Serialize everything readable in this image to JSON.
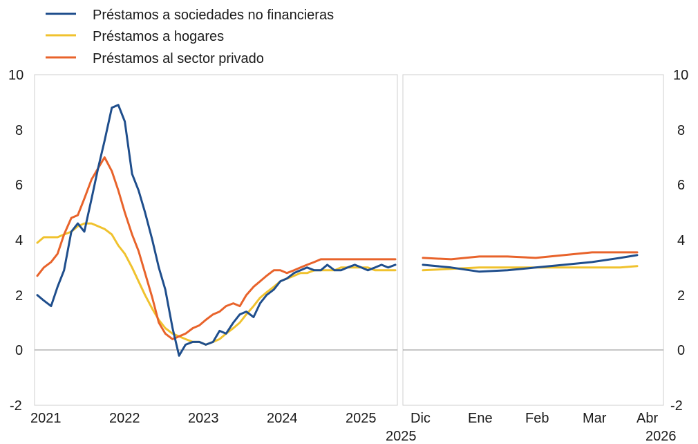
{
  "chart_data": {
    "type": "line",
    "legend": {
      "position": "top-left",
      "entries": [
        {
          "label": "Préstamos a sociedades no financieras",
          "color": "#1f4e8c"
        },
        {
          "label": "Préstamos a hogares",
          "color": "#f0c22e"
        },
        {
          "label": "Préstamos al sector privado",
          "color": "#e8632b"
        }
      ]
    },
    "y_axis": {
      "min": -2,
      "max": 10,
      "ticks": [
        "10",
        "8",
        "6",
        "4",
        "2",
        "0",
        "-2"
      ]
    },
    "grid": false,
    "panels": [
      {
        "id": "history",
        "x_ticks": [
          {
            "label": "2021",
            "x": 2021.0
          },
          {
            "label": "2022",
            "x": 2022.0
          },
          {
            "label": "2023",
            "x": 2023.0
          },
          {
            "label": "2024",
            "x": 2024.0
          },
          {
            "label": "2025",
            "x": 2025.0
          }
        ],
        "xlim": [
          2021.0,
          2025.42
        ],
        "series": [
          {
            "name": "Préstamos a sociedades no financieras",
            "color": "#1f4e8c",
            "x": [
              2021.0,
              2021.08,
              2021.17,
              2021.25,
              2021.33,
              2021.42,
              2021.5,
              2021.58,
              2021.67,
              2021.75,
              2021.83,
              2021.92,
              2022.0,
              2022.08,
              2022.17,
              2022.25,
              2022.33,
              2022.42,
              2022.5,
              2022.58,
              2022.67,
              2022.75,
              2022.83,
              2022.92,
              2023.0,
              2023.08,
              2023.17,
              2023.25,
              2023.33,
              2023.42,
              2023.5,
              2023.58,
              2023.67,
              2023.75,
              2023.83,
              2023.92,
              2024.0,
              2024.08,
              2024.17,
              2024.25,
              2024.33,
              2024.42,
              2024.5,
              2024.58,
              2024.67,
              2024.75,
              2024.83,
              2024.92,
              2025.0,
              2025.08,
              2025.17,
              2025.25,
              2025.33,
              2025.42
            ],
            "values": [
              2.0,
              1.8,
              1.6,
              2.3,
              2.9,
              4.3,
              4.6,
              4.3,
              5.5,
              6.6,
              7.6,
              8.8,
              8.9,
              8.3,
              6.4,
              5.8,
              5.0,
              4.0,
              3.0,
              2.2,
              0.8,
              -0.2,
              0.2,
              0.3,
              0.3,
              0.2,
              0.3,
              0.7,
              0.6,
              1.0,
              1.3,
              1.4,
              1.2,
              1.7,
              2.0,
              2.2,
              2.5,
              2.6,
              2.8,
              2.9,
              3.0,
              2.9,
              2.9,
              3.1,
              2.9,
              2.9,
              3.0,
              3.1,
              3.0,
              2.9,
              3.0,
              3.1,
              3.0,
              3.1
            ]
          },
          {
            "name": "Préstamos a hogares",
            "color": "#f0c22e",
            "x": [
              2021.0,
              2021.08,
              2021.17,
              2021.25,
              2021.33,
              2021.42,
              2021.5,
              2021.58,
              2021.67,
              2021.75,
              2021.83,
              2021.92,
              2022.0,
              2022.08,
              2022.17,
              2022.25,
              2022.33,
              2022.42,
              2022.5,
              2022.58,
              2022.67,
              2022.75,
              2022.83,
              2022.92,
              2023.0,
              2023.08,
              2023.17,
              2023.25,
              2023.33,
              2023.42,
              2023.5,
              2023.58,
              2023.67,
              2023.75,
              2023.83,
              2023.92,
              2024.0,
              2024.08,
              2024.17,
              2024.25,
              2024.33,
              2024.42,
              2024.5,
              2024.58,
              2024.67,
              2024.75,
              2024.83,
              2024.92,
              2025.0,
              2025.08,
              2025.17,
              2025.25,
              2025.33,
              2025.42
            ],
            "values": [
              3.9,
              4.1,
              4.1,
              4.1,
              4.2,
              4.3,
              4.5,
              4.6,
              4.6,
              4.5,
              4.4,
              4.2,
              3.8,
              3.5,
              3.0,
              2.5,
              2.0,
              1.5,
              1.1,
              0.8,
              0.6,
              0.5,
              0.4,
              0.3,
              0.3,
              0.2,
              0.3,
              0.4,
              0.6,
              0.8,
              1.0,
              1.3,
              1.6,
              1.9,
              2.1,
              2.3,
              2.5,
              2.6,
              2.7,
              2.8,
              2.8,
              2.9,
              2.9,
              2.9,
              2.9,
              3.0,
              3.0,
              3.0,
              3.0,
              3.0,
              2.9,
              2.9,
              2.9,
              2.9
            ]
          },
          {
            "name": "Préstamos al sector privado",
            "color": "#e8632b",
            "x": [
              2021.0,
              2021.08,
              2021.17,
              2021.25,
              2021.33,
              2021.42,
              2021.5,
              2021.58,
              2021.67,
              2021.75,
              2021.83,
              2021.92,
              2022.0,
              2022.08,
              2022.17,
              2022.25,
              2022.33,
              2022.42,
              2022.5,
              2022.58,
              2022.67,
              2022.75,
              2022.83,
              2022.92,
              2023.0,
              2023.08,
              2023.17,
              2023.25,
              2023.33,
              2023.42,
              2023.5,
              2023.58,
              2023.67,
              2023.75,
              2023.83,
              2023.92,
              2024.0,
              2024.08,
              2024.17,
              2024.25,
              2024.33,
              2024.42,
              2024.5,
              2024.58,
              2024.67,
              2024.75,
              2024.83,
              2024.92,
              2025.0,
              2025.08,
              2025.17,
              2025.25,
              2025.33,
              2025.42
            ],
            "values": [
              2.7,
              3.0,
              3.2,
              3.5,
              4.2,
              4.8,
              4.9,
              5.5,
              6.2,
              6.6,
              7.0,
              6.5,
              5.8,
              5.0,
              4.2,
              3.6,
              2.8,
              1.9,
              1.0,
              0.6,
              0.4,
              0.5,
              0.6,
              0.8,
              0.9,
              1.1,
              1.3,
              1.4,
              1.6,
              1.7,
              1.6,
              2.0,
              2.3,
              2.5,
              2.7,
              2.9,
              2.9,
              2.8,
              2.9,
              3.0,
              3.1,
              3.2,
              3.3,
              3.3,
              3.3,
              3.3,
              3.3,
              3.3,
              3.3,
              3.3,
              3.3,
              3.3,
              3.3,
              3.3
            ]
          }
        ]
      },
      {
        "id": "recent",
        "x_ticks": [
          {
            "label": "Dic",
            "x": 0,
            "sublabel": "2025"
          },
          {
            "label": "Ene",
            "x": 1
          },
          {
            "label": "Feb",
            "x": 2
          },
          {
            "label": "Mar",
            "x": 3
          },
          {
            "label": "Abr",
            "x": 4,
            "sublabel": "2026"
          }
        ],
        "xlim": [
          -0.25,
          4.25
        ],
        "series": [
          {
            "name": "Préstamos a sociedades no financieras",
            "color": "#1f4e8c",
            "x": [
              0,
              0.5,
              1,
              1.5,
              2,
              2.5,
              3,
              3.5,
              3.8
            ],
            "values": [
              3.1,
              3.0,
              2.85,
              2.9,
              3.0,
              3.1,
              3.2,
              3.35,
              3.45
            ]
          },
          {
            "name": "Préstamos a hogares",
            "color": "#f0c22e",
            "x": [
              0,
              0.5,
              1,
              1.5,
              2,
              2.5,
              3,
              3.5,
              3.8
            ],
            "values": [
              2.9,
              2.95,
              3.0,
              3.0,
              3.0,
              3.0,
              3.0,
              3.0,
              3.05
            ]
          },
          {
            "name": "Préstamos al sector privado",
            "color": "#e8632b",
            "x": [
              0,
              0.5,
              1,
              1.5,
              2,
              2.5,
              3,
              3.5,
              3.8
            ],
            "values": [
              3.35,
              3.3,
              3.4,
              3.4,
              3.35,
              3.45,
              3.55,
              3.55,
              3.55
            ]
          }
        ]
      }
    ]
  }
}
